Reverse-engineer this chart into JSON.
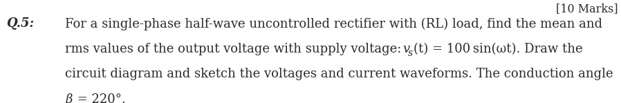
{
  "background_color": "#ffffff",
  "top_right_text": "[10 Marks]",
  "question_label": "Q.5:",
  "line1": "For a single-phase half-wave uncontrolled rectifier with (RL) load, find the mean and",
  "line2_a": "rms values of the output voltage with supply voltage: ",
  "line2_math": "v",
  "line2_sub": "s",
  "line2_b": "(t)",
  "line2_c": " = 100 sin(ωt). Draw the",
  "line3": "circuit diagram and sketch the voltages and current waveforms. The conduction angle",
  "line4_a": "β",
  "line4_b": " = 220°.",
  "font_size": 13.0,
  "text_color": "#2a2a2a",
  "fig_width": 8.98,
  "fig_height": 1.49,
  "dpi": 100
}
